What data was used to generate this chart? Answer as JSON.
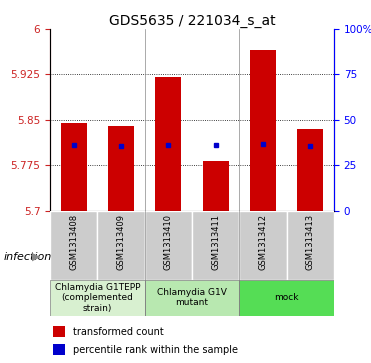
{
  "title": "GDS5635 / 221034_s_at",
  "samples": [
    "GSM1313408",
    "GSM1313409",
    "GSM1313410",
    "GSM1313411",
    "GSM1313412",
    "GSM1313413"
  ],
  "bar_values": [
    5.845,
    5.84,
    5.92,
    5.782,
    5.965,
    5.835
  ],
  "blue_values": [
    5.808,
    5.806,
    5.809,
    5.808,
    5.81,
    5.807
  ],
  "base_value": 5.7,
  "ymin": 5.7,
  "ymax": 6.0,
  "yticks": [
    5.7,
    5.775,
    5.85,
    5.925,
    6.0
  ],
  "ytick_labels": [
    "5.7",
    "5.775",
    "5.85",
    "5.925",
    "6"
  ],
  "right_yticks_pct": [
    0,
    25,
    50,
    75,
    100
  ],
  "right_ytick_labels": [
    "0",
    "25",
    "50",
    "75",
    "100%"
  ],
  "bar_color": "#cc0000",
  "blue_color": "#0000cc",
  "groups": [
    {
      "label": "Chlamydia G1TEPP\n(complemented\nstrain)",
      "start": 0,
      "end": 1,
      "color": "#d8f0d0"
    },
    {
      "label": "Chlamydia G1V\nmutant",
      "start": 2,
      "end": 3,
      "color": "#b8e8b0"
    },
    {
      "label": "mock",
      "start": 4,
      "end": 5,
      "color": "#55dd55"
    }
  ],
  "infection_label": "infection",
  "legend_red_label": "transformed count",
  "legend_blue_label": "percentile rank within the sample",
  "bar_width": 0.55,
  "title_fontsize": 10,
  "tick_fontsize": 7.5,
  "sample_fontsize": 6,
  "group_fontsize": 6.5
}
